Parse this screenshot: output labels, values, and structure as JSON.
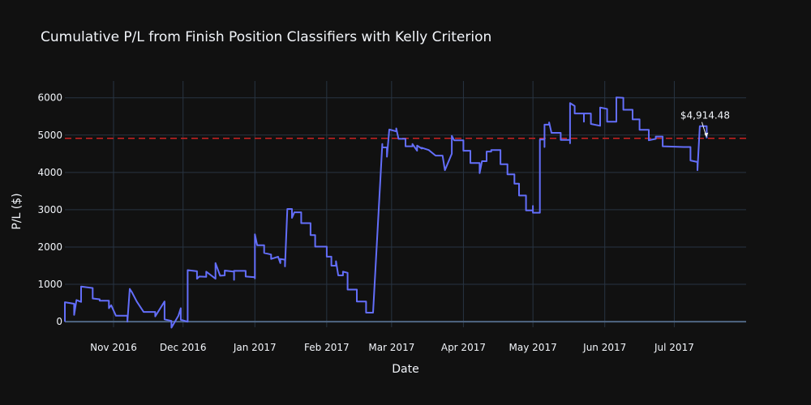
{
  "chart_data": {
    "type": "line",
    "line_shape": "step",
    "title": "Cumulative P/L from Finish Position Classifiers with Kelly Criterion",
    "xlabel": "Date",
    "ylabel": "P/L ($)",
    "xlim": [
      "2016-10-11",
      "2017-08-01"
    ],
    "ylim": [
      -150,
      6450
    ],
    "x_ticks": [
      {
        "date": "2016-11-01",
        "label": "Nov 2016"
      },
      {
        "date": "2016-12-01",
        "label": "Dec 2016"
      },
      {
        "date": "2017-01-01",
        "label": "Jan 2017"
      },
      {
        "date": "2017-02-01",
        "label": "Feb 2017"
      },
      {
        "date": "2017-03-01",
        "label": "Mar 2017"
      },
      {
        "date": "2017-04-01",
        "label": "Apr 2017"
      },
      {
        "date": "2017-05-01",
        "label": "May 2017"
      },
      {
        "date": "2017-06-01",
        "label": "Jun 2017"
      },
      {
        "date": "2017-07-01",
        "label": "Jul 2017"
      }
    ],
    "y_ticks": [
      {
        "value": 0,
        "label": "0"
      },
      {
        "value": 1000,
        "label": "1000"
      },
      {
        "value": 2000,
        "label": "2000"
      },
      {
        "value": 3000,
        "label": "3000"
      },
      {
        "value": 4000,
        "label": "4000"
      },
      {
        "value": 5000,
        "label": "5000"
      },
      {
        "value": 6000,
        "label": "6000"
      }
    ],
    "grid": true,
    "series": [
      {
        "color": "#636efa",
        "points": [
          [
            "2016-10-11",
            0
          ],
          [
            "2016-10-11",
            520
          ],
          [
            "2016-10-15",
            480
          ],
          [
            "2016-10-15",
            180
          ],
          [
            "2016-10-16",
            580
          ],
          [
            "2016-10-18",
            530
          ],
          [
            "2016-10-18",
            940
          ],
          [
            "2016-10-23",
            900
          ],
          [
            "2016-10-23",
            620
          ],
          [
            "2016-10-26",
            600
          ],
          [
            "2016-10-26",
            560
          ],
          [
            "2016-10-30",
            560
          ],
          [
            "2016-10-30",
            360
          ],
          [
            "2016-10-31",
            440
          ],
          [
            "2016-11-02",
            160
          ],
          [
            "2016-11-07",
            160
          ],
          [
            "2016-11-07",
            0
          ],
          [
            "2016-11-08",
            880
          ],
          [
            "2016-11-09",
            780
          ],
          [
            "2016-11-11",
            540
          ],
          [
            "2016-11-14",
            260
          ],
          [
            "2016-11-19",
            260
          ],
          [
            "2016-11-19",
            140
          ],
          [
            "2016-11-23",
            540
          ],
          [
            "2016-11-23",
            60
          ],
          [
            "2016-11-26",
            20
          ],
          [
            "2016-11-26",
            -160
          ],
          [
            "2016-11-29",
            160
          ],
          [
            "2016-11-30",
            360
          ],
          [
            "2016-11-30",
            50
          ],
          [
            "2016-12-03",
            0
          ],
          [
            "2016-12-03",
            1380
          ],
          [
            "2016-12-07",
            1350
          ],
          [
            "2016-12-07",
            1150
          ],
          [
            "2016-12-08",
            1210
          ],
          [
            "2016-12-11",
            1200
          ],
          [
            "2016-12-11",
            1340
          ],
          [
            "2016-12-15",
            1150
          ],
          [
            "2016-12-15",
            1570
          ],
          [
            "2016-12-17",
            1230
          ],
          [
            "2016-12-19",
            1240
          ],
          [
            "2016-12-19",
            1370
          ],
          [
            "2016-12-23",
            1340
          ],
          [
            "2016-12-23",
            1120
          ],
          [
            "2016-12-23",
            1360
          ],
          [
            "2016-12-28",
            1360
          ],
          [
            "2016-12-28",
            1210
          ],
          [
            "2017-01-01",
            1190
          ],
          [
            "2017-01-01",
            1160
          ],
          [
            "2017-01-01",
            2340
          ],
          [
            "2017-01-02",
            2050
          ],
          [
            "2017-01-05",
            2050
          ],
          [
            "2017-01-05",
            1840
          ],
          [
            "2017-01-08",
            1800
          ],
          [
            "2017-01-08",
            1680
          ],
          [
            "2017-01-11",
            1740
          ],
          [
            "2017-01-12",
            1570
          ],
          [
            "2017-01-12",
            1680
          ],
          [
            "2017-01-14",
            1660
          ],
          [
            "2017-01-14",
            1480
          ],
          [
            "2017-01-15",
            3020
          ],
          [
            "2017-01-17",
            3020
          ],
          [
            "2017-01-17",
            2780
          ],
          [
            "2017-01-18",
            2930
          ],
          [
            "2017-01-21",
            2930
          ],
          [
            "2017-01-21",
            2640
          ],
          [
            "2017-01-25",
            2640
          ],
          [
            "2017-01-25",
            2320
          ],
          [
            "2017-01-27",
            2320
          ],
          [
            "2017-01-27",
            2010
          ],
          [
            "2017-02-01",
            2010
          ],
          [
            "2017-02-01",
            1740
          ],
          [
            "2017-02-03",
            1740
          ],
          [
            "2017-02-03",
            1500
          ],
          [
            "2017-02-05",
            1500
          ],
          [
            "2017-02-05",
            1620
          ],
          [
            "2017-02-06",
            1240
          ],
          [
            "2017-02-08",
            1240
          ],
          [
            "2017-02-08",
            1340
          ],
          [
            "2017-02-10",
            1310
          ],
          [
            "2017-02-10",
            860
          ],
          [
            "2017-02-14",
            860
          ],
          [
            "2017-02-14",
            540
          ],
          [
            "2017-02-18",
            540
          ],
          [
            "2017-02-18",
            240
          ],
          [
            "2017-02-21",
            240
          ],
          [
            "2017-02-25",
            4760
          ],
          [
            "2017-02-25",
            4670
          ],
          [
            "2017-02-27",
            4670
          ],
          [
            "2017-02-27",
            4420
          ],
          [
            "2017-02-28",
            5150
          ],
          [
            "2017-03-03",
            5100
          ],
          [
            "2017-03-03",
            5180
          ],
          [
            "2017-03-04",
            4900
          ],
          [
            "2017-03-07",
            4900
          ],
          [
            "2017-03-07",
            4700
          ],
          [
            "2017-03-10",
            4700
          ],
          [
            "2017-03-10",
            4760
          ],
          [
            "2017-03-12",
            4580
          ],
          [
            "2017-03-12",
            4720
          ],
          [
            "2017-03-14",
            4640
          ],
          [
            "2017-03-14",
            4660
          ],
          [
            "2017-03-17",
            4600
          ],
          [
            "2017-03-20",
            4450
          ],
          [
            "2017-03-23",
            4450
          ],
          [
            "2017-03-24",
            4060
          ],
          [
            "2017-03-27",
            4500
          ],
          [
            "2017-03-27",
            4980
          ],
          [
            "2017-03-28",
            4860
          ],
          [
            "2017-04-01",
            4860
          ],
          [
            "2017-04-01",
            4580
          ],
          [
            "2017-04-04",
            4580
          ],
          [
            "2017-04-04",
            4250
          ],
          [
            "2017-04-08",
            4250
          ],
          [
            "2017-04-08",
            3980
          ],
          [
            "2017-04-09",
            4300
          ],
          [
            "2017-04-11",
            4300
          ],
          [
            "2017-04-11",
            4560
          ],
          [
            "2017-04-13",
            4560
          ],
          [
            "2017-04-13",
            4600
          ],
          [
            "2017-04-17",
            4600
          ],
          [
            "2017-04-17",
            4220
          ],
          [
            "2017-04-20",
            4220
          ],
          [
            "2017-04-20",
            3950
          ],
          [
            "2017-04-23",
            3950
          ],
          [
            "2017-04-23",
            3700
          ],
          [
            "2017-04-25",
            3700
          ],
          [
            "2017-04-25",
            3380
          ],
          [
            "2017-04-28",
            3380
          ],
          [
            "2017-04-28",
            2980
          ],
          [
            "2017-05-01",
            2980
          ],
          [
            "2017-05-01",
            3100
          ],
          [
            "2017-05-01",
            2920
          ],
          [
            "2017-05-04",
            2920
          ],
          [
            "2017-05-04",
            4880
          ],
          [
            "2017-05-06",
            4880
          ],
          [
            "2017-05-06",
            4680
          ],
          [
            "2017-05-06",
            5280
          ],
          [
            "2017-05-08",
            5280
          ],
          [
            "2017-05-08",
            5340
          ],
          [
            "2017-05-09",
            5060
          ],
          [
            "2017-05-13",
            5060
          ],
          [
            "2017-05-13",
            4870
          ],
          [
            "2017-05-17",
            4870
          ],
          [
            "2017-05-17",
            4780
          ],
          [
            "2017-05-17",
            5860
          ],
          [
            "2017-05-19",
            5780
          ],
          [
            "2017-05-19",
            5580
          ],
          [
            "2017-05-23",
            5580
          ],
          [
            "2017-05-23",
            5360
          ],
          [
            "2017-05-23",
            5580
          ],
          [
            "2017-05-26",
            5580
          ],
          [
            "2017-05-26",
            5300
          ],
          [
            "2017-05-30",
            5250
          ],
          [
            "2017-05-30",
            5740
          ],
          [
            "2017-06-02",
            5700
          ],
          [
            "2017-06-02",
            5360
          ],
          [
            "2017-06-06",
            5360
          ],
          [
            "2017-06-06",
            6010
          ],
          [
            "2017-06-09",
            6000
          ],
          [
            "2017-06-09",
            5680
          ],
          [
            "2017-06-13",
            5680
          ],
          [
            "2017-06-13",
            5420
          ],
          [
            "2017-06-16",
            5420
          ],
          [
            "2017-06-16",
            5140
          ],
          [
            "2017-06-20",
            5140
          ],
          [
            "2017-06-20",
            4860
          ],
          [
            "2017-06-23",
            4900
          ],
          [
            "2017-06-23",
            4960
          ],
          [
            "2017-06-26",
            4960
          ],
          [
            "2017-06-26",
            4700
          ],
          [
            "2017-07-05",
            4680
          ],
          [
            "2017-07-08",
            4680
          ],
          [
            "2017-07-08",
            4320
          ],
          [
            "2017-07-11",
            4280
          ],
          [
            "2017-07-11",
            4060
          ],
          [
            "2017-07-12",
            5240
          ],
          [
            "2017-07-15",
            5240
          ],
          [
            "2017-07-15",
            4914.48
          ]
        ]
      }
    ],
    "reference_line": {
      "value": 4914.48,
      "color": "#cc2222",
      "style": "dashed"
    },
    "annotation": {
      "text": "$4,914.48",
      "date": "2017-07-15",
      "value": 4914.48
    },
    "colors": {
      "background": "#111111",
      "grid": "#283442",
      "text": "#f2f5fa",
      "line": "#636efa"
    }
  }
}
